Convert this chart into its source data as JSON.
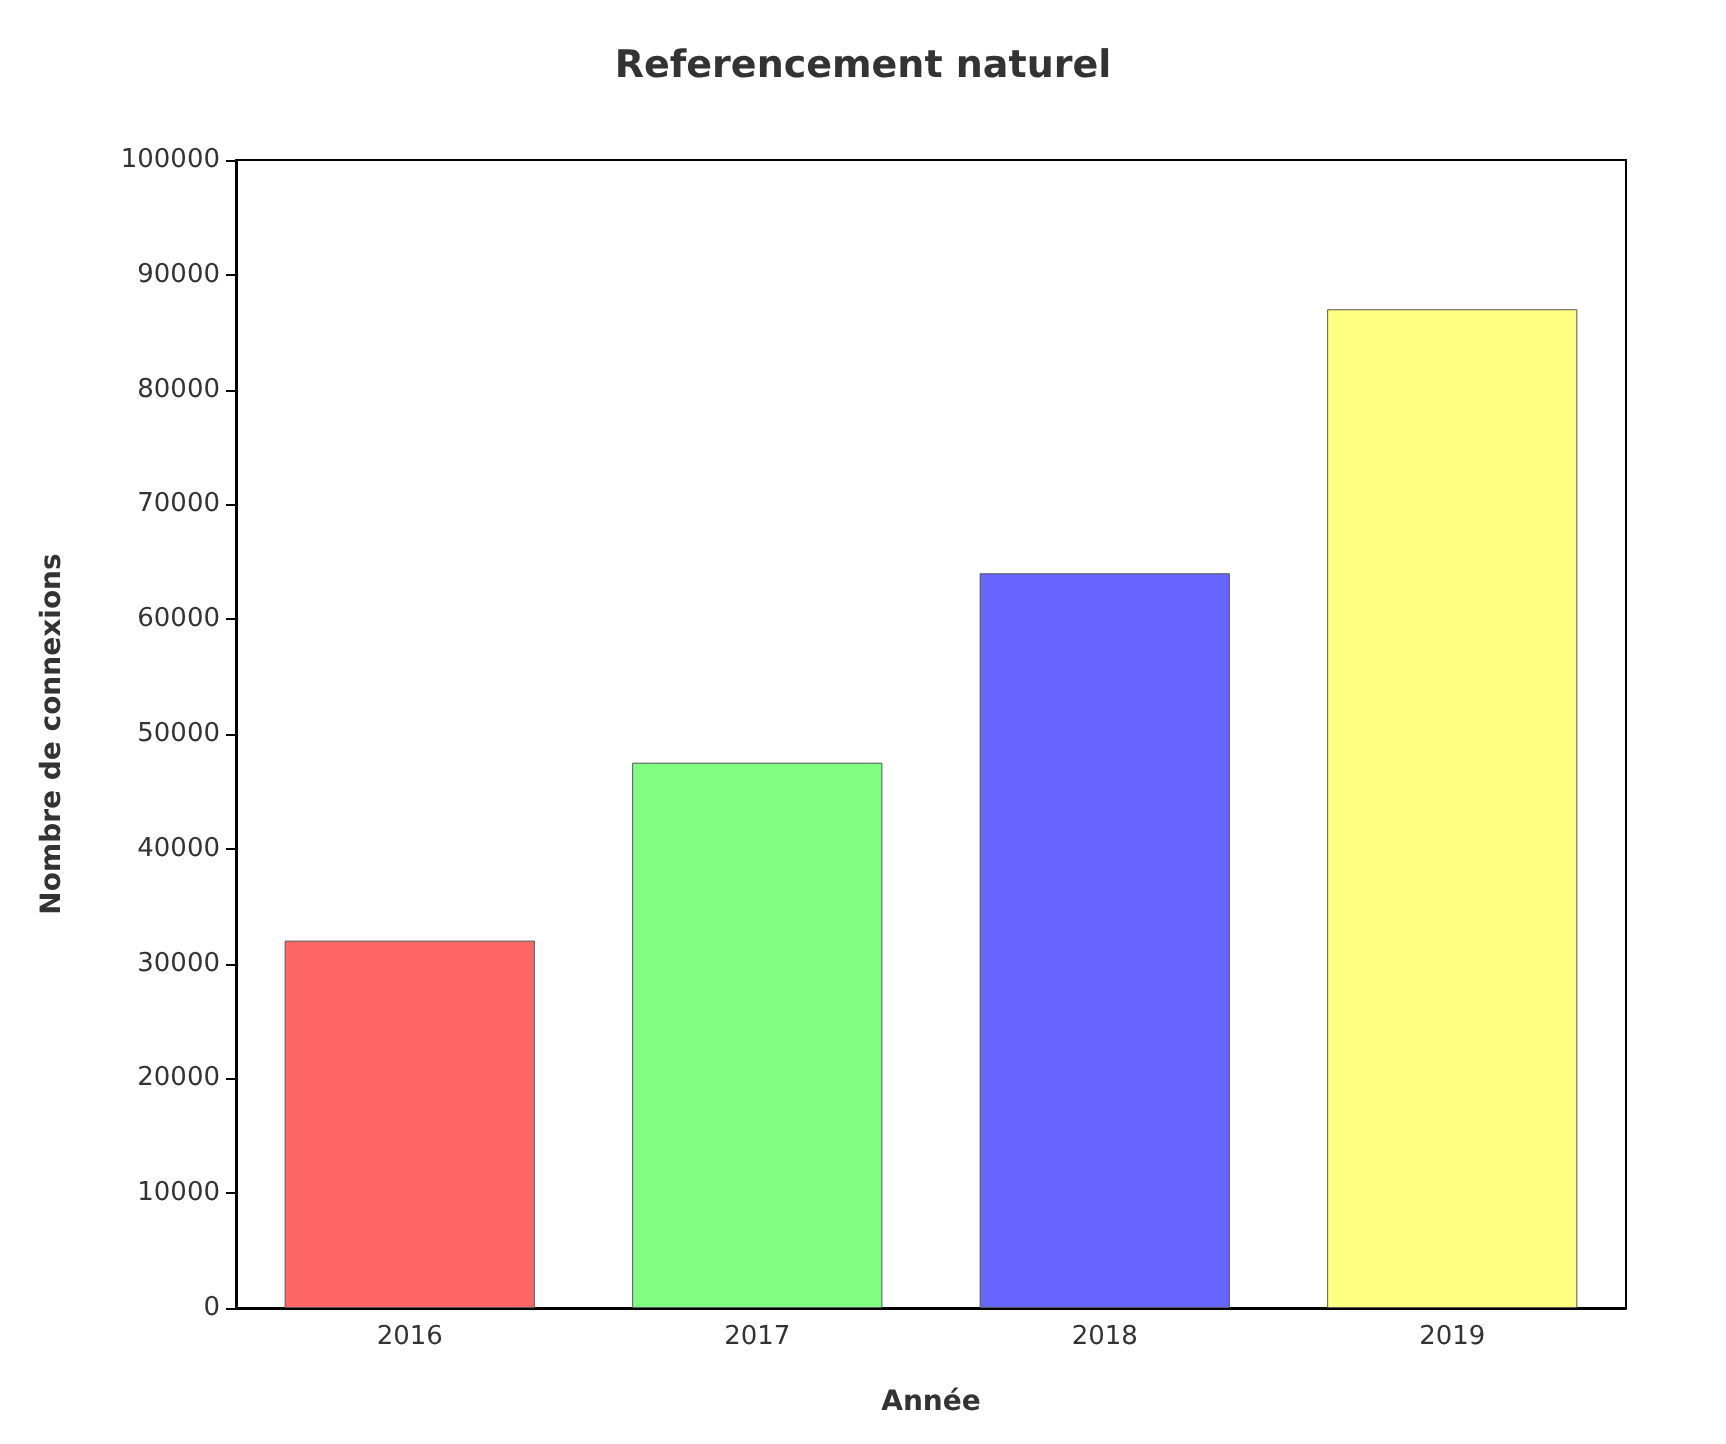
{
  "chart_data": {
    "type": "bar",
    "title": "Referencement naturel",
    "xlabel": "Année",
    "ylabel": "Nombre de connexions",
    "categories": [
      "2016",
      "2017",
      "2018",
      "2019"
    ],
    "values": [
      32000,
      47500,
      64000,
      87000
    ],
    "colors": [
      "#ff6666",
      "#80ff80",
      "#6666ff",
      "#ffff80"
    ],
    "ylim": [
      0,
      100000
    ],
    "yticks": [
      0,
      10000,
      20000,
      30000,
      40000,
      50000,
      60000,
      70000,
      80000,
      90000,
      100000
    ],
    "grid": false
  }
}
